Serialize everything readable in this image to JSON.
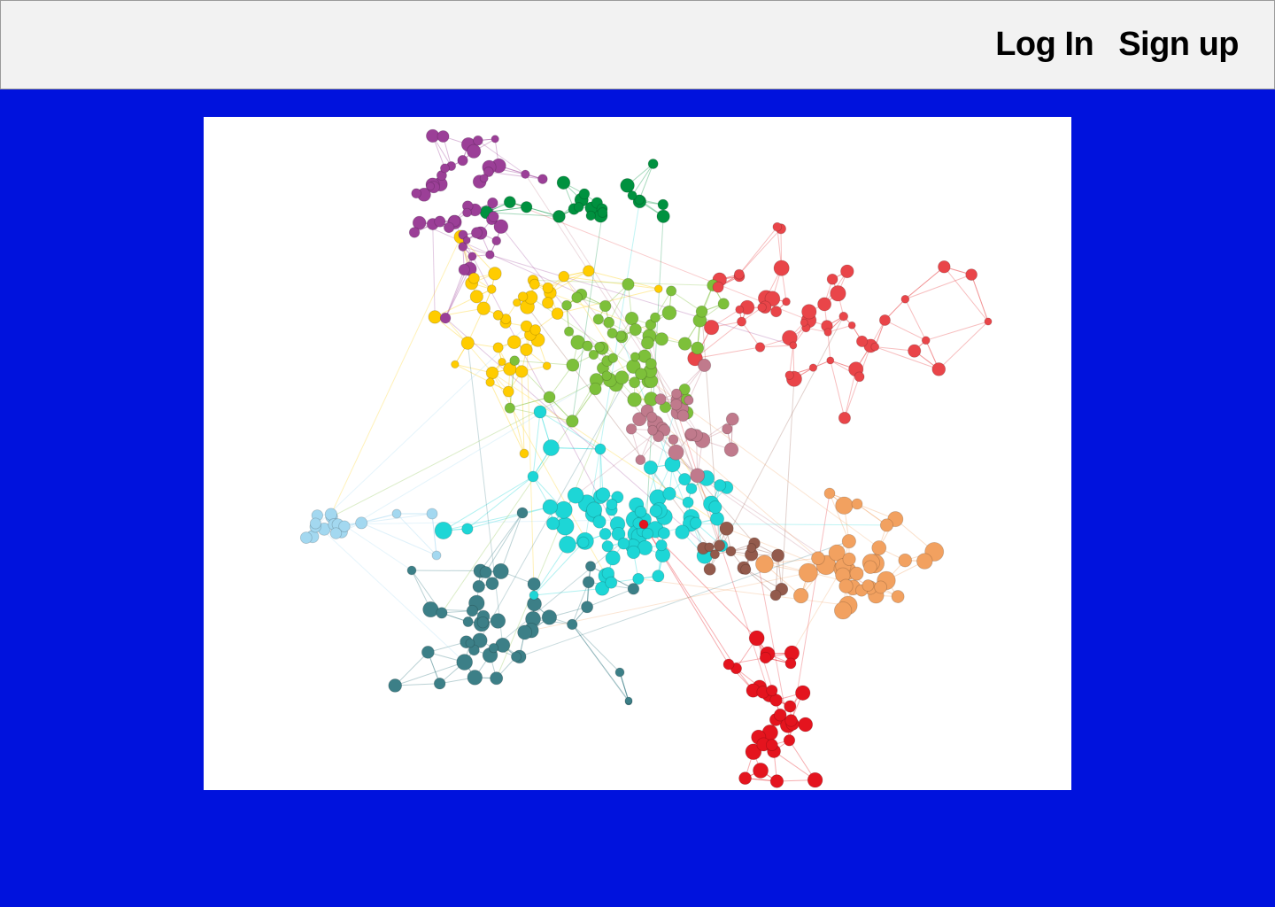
{
  "header": {
    "login_label": "Log In",
    "signup_label": "Sign up"
  },
  "colors": {
    "page_background": "#0012DD",
    "header_background": "#F2F2F2",
    "panel_background": "#FFFFFF"
  },
  "graph": {
    "communities": [
      {
        "name": "purple",
        "color": "#9B3F97"
      },
      {
        "name": "dark-green",
        "color": "#00913F"
      },
      {
        "name": "yellow",
        "color": "#FFCC00"
      },
      {
        "name": "light-green",
        "color": "#7DC03A"
      },
      {
        "name": "red",
        "color": "#E94549"
      },
      {
        "name": "mauve",
        "color": "#C07A8C"
      },
      {
        "name": "cyan",
        "color": "#1DD6D6"
      },
      {
        "name": "light-blue",
        "color": "#A3D8F0"
      },
      {
        "name": "teal",
        "color": "#3C7F87"
      },
      {
        "name": "brown",
        "color": "#935A4C"
      },
      {
        "name": "orange",
        "color": "#F2A160"
      },
      {
        "name": "crimson",
        "color": "#E4141E"
      }
    ]
  }
}
